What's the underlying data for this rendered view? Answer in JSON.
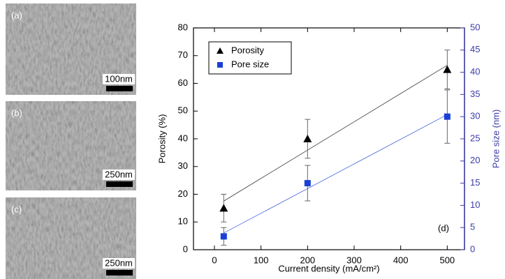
{
  "panels": [
    {
      "label": "(a)",
      "scale": "100nm"
    },
    {
      "label": "(b)",
      "scale": "250nm"
    },
    {
      "label": "(c)",
      "scale": "250nm"
    }
  ],
  "chart_data": {
    "type": "scatter",
    "panel_label": "(d)",
    "xlabel": "Current density (mA/cm²)",
    "ylabel": "Porosity (%)",
    "y2label": "Pore size (nm)",
    "x": [
      20,
      200,
      500
    ],
    "series": [
      {
        "name": "Porosity",
        "color": "#000000",
        "marker": "triangle",
        "values": [
          15,
          40,
          65
        ],
        "errors": [
          5,
          7,
          7
        ],
        "fit_line": true
      },
      {
        "name": "Pore size",
        "color": "#1a3fd6",
        "marker": "square",
        "axis": "y2",
        "values": [
          3,
          15,
          30
        ],
        "errors": [
          2,
          4,
          6
        ],
        "fit_line": true
      }
    ],
    "xlim": [
      -45,
      537
    ],
    "xticks": [
      0,
      100,
      200,
      300,
      400,
      500
    ],
    "ylim": [
      0,
      80
    ],
    "yticks": [
      0,
      10,
      20,
      30,
      40,
      50,
      60,
      70,
      80
    ],
    "y2lim": [
      0,
      50
    ],
    "y2ticks": [
      0,
      5,
      10,
      15,
      20,
      25,
      30,
      35,
      40,
      45,
      50
    ],
    "y2color": "#3c3ca8",
    "legend": "upper left"
  }
}
